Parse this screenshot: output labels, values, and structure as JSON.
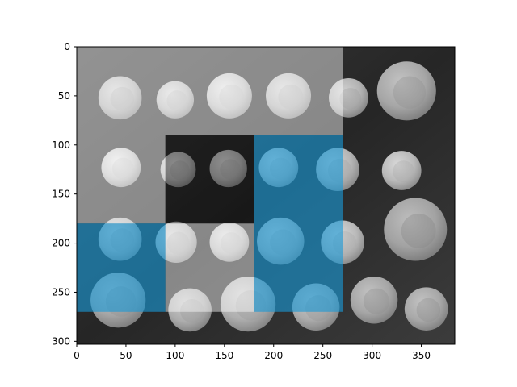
{
  "chart_data": {
    "type": "heatmap",
    "title": "",
    "xlabel": "",
    "ylabel": "",
    "image": {
      "width": 384,
      "height": 303,
      "colormap": "gray",
      "description_subject": "grid of ancient coins on dark background"
    },
    "xlim": [
      0,
      384
    ],
    "ylim": [
      303,
      0
    ],
    "x_ticks": [
      0,
      50,
      100,
      150,
      200,
      250,
      300,
      350
    ],
    "y_ticks": [
      0,
      50,
      100,
      150,
      200,
      250,
      300
    ],
    "x_tick_labels": [
      "0",
      "50",
      "100",
      "150",
      "200",
      "250",
      "300",
      "350"
    ],
    "y_tick_labels": [
      "0",
      "50",
      "100",
      "150",
      "200",
      "250",
      "300"
    ],
    "coins": [
      {
        "x": 44,
        "y": 52,
        "r": 22,
        "shade": 0.78
      },
      {
        "x": 100,
        "y": 54,
        "r": 19,
        "shade": 0.82
      },
      {
        "x": 155,
        "y": 50,
        "r": 23,
        "shade": 0.86
      },
      {
        "x": 215,
        "y": 50,
        "r": 23,
        "shade": 0.8
      },
      {
        "x": 276,
        "y": 52,
        "r": 20,
        "shade": 0.78
      },
      {
        "x": 335,
        "y": 45,
        "r": 30,
        "shade": 0.72
      },
      {
        "x": 45,
        "y": 123,
        "r": 20,
        "shade": 0.88
      },
      {
        "x": 103,
        "y": 125,
        "r": 18,
        "shade": 0.8
      },
      {
        "x": 154,
        "y": 124,
        "r": 19,
        "shade": 0.83
      },
      {
        "x": 205,
        "y": 123,
        "r": 20,
        "shade": 0.82
      },
      {
        "x": 265,
        "y": 125,
        "r": 22,
        "shade": 0.8
      },
      {
        "x": 330,
        "y": 126,
        "r": 20,
        "shade": 0.82
      },
      {
        "x": 44,
        "y": 196,
        "r": 22,
        "shade": 0.78
      },
      {
        "x": 101,
        "y": 199,
        "r": 21,
        "shade": 0.8
      },
      {
        "x": 155,
        "y": 199,
        "r": 20,
        "shade": 0.84
      },
      {
        "x": 207,
        "y": 198,
        "r": 24,
        "shade": 0.8
      },
      {
        "x": 270,
        "y": 199,
        "r": 22,
        "shade": 0.82
      },
      {
        "x": 344,
        "y": 186,
        "r": 32,
        "shade": 0.68
      },
      {
        "x": 42,
        "y": 258,
        "r": 28,
        "shade": 0.72
      },
      {
        "x": 115,
        "y": 268,
        "r": 22,
        "shade": 0.75
      },
      {
        "x": 174,
        "y": 262,
        "r": 28,
        "shade": 0.76
      },
      {
        "x": 243,
        "y": 265,
        "r": 24,
        "shade": 0.74
      },
      {
        "x": 302,
        "y": 258,
        "r": 24,
        "shade": 0.7
      },
      {
        "x": 355,
        "y": 267,
        "r": 22,
        "shade": 0.7
      }
    ],
    "overlays": [
      {
        "kind": "light",
        "x0": 0,
        "x1": 270,
        "y0": 0,
        "y1": 90
      },
      {
        "kind": "light",
        "x0": 0,
        "x1": 90,
        "y0": 90,
        "y1": 180
      },
      {
        "kind": "light",
        "x0": 90,
        "x1": 180,
        "y0": 180,
        "y1": 270
      },
      {
        "kind": "dark",
        "x0": 90,
        "x1": 180,
        "y0": 90,
        "y1": 180
      },
      {
        "kind": "blue",
        "x0": 0,
        "x1": 90,
        "y0": 180,
        "y1": 270
      },
      {
        "kind": "blue",
        "x0": 180,
        "x1": 270,
        "y0": 90,
        "y1": 270
      }
    ],
    "colors": {
      "background": "#2a2a2a",
      "light": "#ffffff",
      "dark": "#000000",
      "blue": "#1a9ad6",
      "axis": "#000000"
    }
  }
}
